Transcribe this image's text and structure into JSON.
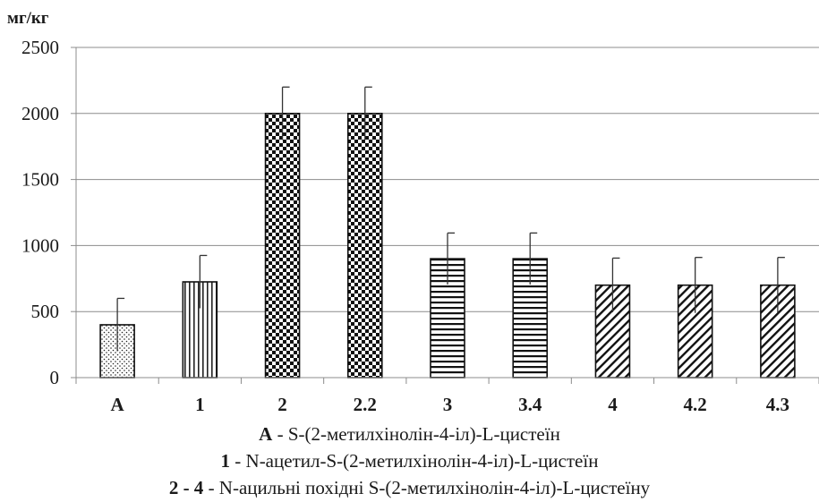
{
  "chart_data": {
    "type": "bar",
    "ylabel": "мг/кг",
    "ylim": [
      0,
      2500
    ],
    "yticks": [
      0,
      500,
      1000,
      1500,
      2000,
      2500
    ],
    "grid": true,
    "categories": [
      "A",
      "1",
      "2",
      "2.2",
      "3",
      "3.4",
      "4",
      "4.2",
      "4.3"
    ],
    "values": [
      400,
      725,
      2000,
      2000,
      900,
      900,
      700,
      700,
      700
    ],
    "error": [
      200,
      200,
      200,
      200,
      195,
      195,
      205,
      210,
      210
    ],
    "patterns": [
      "dots",
      "vertical-lines",
      "checker",
      "checker",
      "horizontal-lines",
      "horizontal-lines",
      "diagonal-lines",
      "diagonal-lines",
      "diagonal-lines"
    ]
  },
  "legend": [
    {
      "key": "A",
      "text": " - S-(2-метилхінолін-4-іл)-L-цистеїн"
    },
    {
      "key": "1",
      "text": " - N-ацетил-S-(2-метилхінолін-4-іл)-L-цистеїн"
    },
    {
      "key": "2 - 4",
      "text": " - N-ацильні похідні S-(2-метилхінолін-4-іл)-L-цистеїну"
    }
  ]
}
